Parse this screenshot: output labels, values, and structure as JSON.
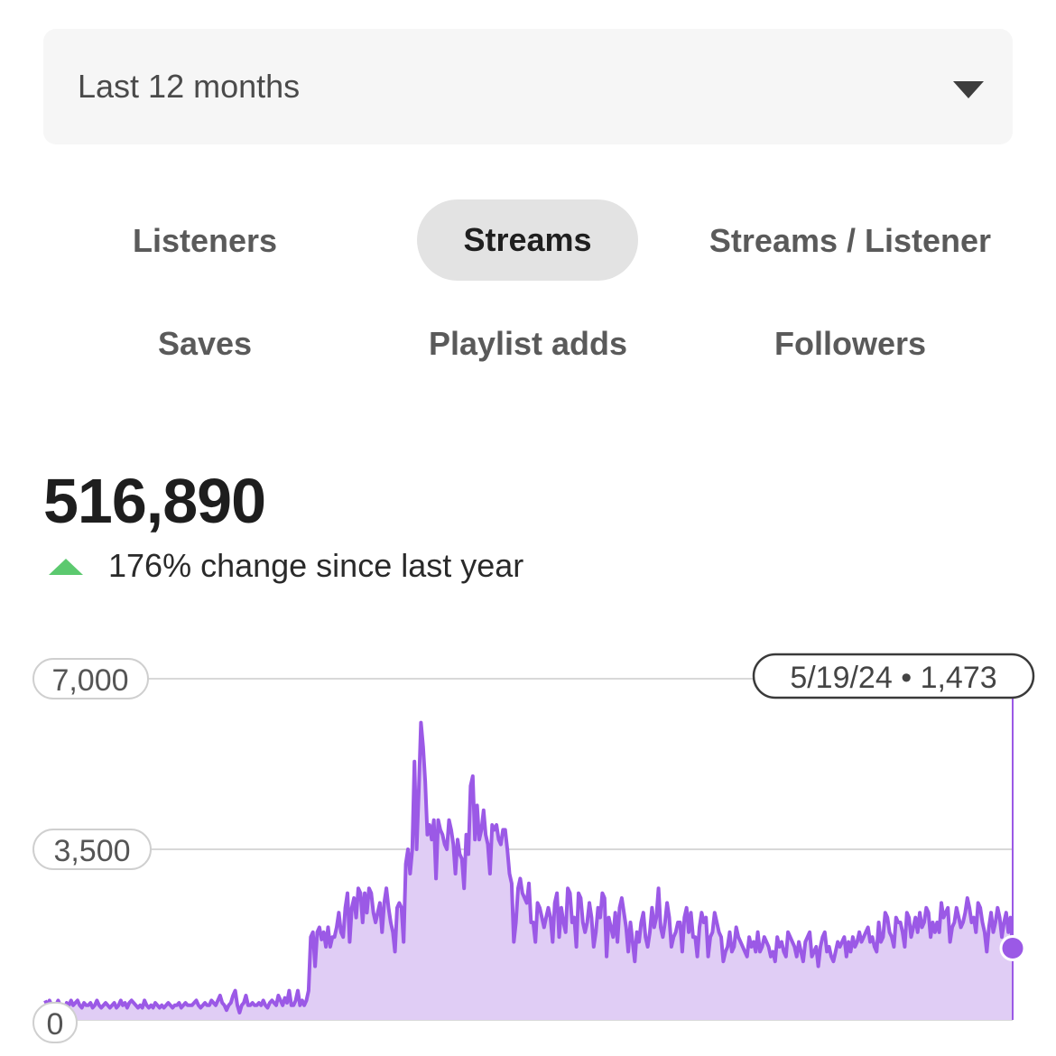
{
  "period_select": {
    "value": "Last 12 months",
    "caret_icon": "caret-down-icon"
  },
  "metric_tabs": [
    {
      "label": "Listeners",
      "active": false
    },
    {
      "label": "Streams",
      "active": true
    },
    {
      "label": "Streams / Listener",
      "active": false
    },
    {
      "label": "Saves",
      "active": false
    },
    {
      "label": "Playlist adds",
      "active": false
    },
    {
      "label": "Followers",
      "active": false
    }
  ],
  "summary": {
    "total": "516,890",
    "change_text": "176% change since last year",
    "trend_icon": "up-triangle-icon",
    "trend_color": "#5cc96f"
  },
  "chart_data": {
    "type": "area",
    "y_ticks": [
      "7,000",
      "3,500",
      "0"
    ],
    "ylim": [
      0,
      7000
    ],
    "grid": true,
    "line_color": "#9b59e6",
    "fill_color": "#e0cdf5",
    "tooltip": {
      "date": "5/19/24",
      "separator": "•",
      "value": "1,473"
    },
    "series": [
      {
        "values": [
          400,
          300,
          400,
          300,
          200,
          300,
          400,
          300,
          250,
          200,
          350,
          300,
          400,
          300,
          350,
          400,
          300,
          250,
          350,
          300,
          300,
          350,
          250,
          300,
          400,
          300,
          250,
          300,
          350,
          300,
          250,
          300,
          350,
          250,
          300,
          400,
          300,
          350,
          250,
          350,
          400,
          350,
          300,
          250,
          300,
          250,
          400,
          300,
          250,
          300,
          250,
          350,
          300,
          250,
          300,
          250,
          300,
          350,
          300,
          250,
          300,
          300,
          350,
          250,
          300,
          350,
          300,
          300,
          300,
          350,
          400,
          300,
          250,
          300,
          350,
          300,
          300,
          400,
          350,
          300,
          400,
          500,
          350,
          300,
          200,
          300,
          350,
          500,
          600,
          300,
          150,
          300,
          350,
          500,
          300,
          300,
          350,
          300,
          300,
          350,
          300,
          400,
          300,
          250,
          350,
          400,
          350,
          300,
          500,
          400,
          300,
          450,
          350,
          600,
          300,
          300,
          400,
          600,
          300,
          400,
          300,
          400,
          600,
          1700,
          1800,
          1100,
          1800,
          1900,
          1650,
          1800,
          1500,
          1900,
          1500,
          1700,
          1700,
          1900,
          2200,
          1800,
          1700,
          2300,
          2600,
          1600,
          2300,
          2500,
          2100,
          2700,
          2600,
          2000,
          2600,
          2200,
          2700,
          2600,
          2200,
          2000,
          2200,
          2400,
          1800,
          2400,
          2700,
          2300,
          2000,
          1800,
          1400,
          2300,
          2400,
          2300,
          1600,
          3200,
          3500,
          3000,
          3500,
          5300,
          3500,
          4700,
          6100,
          5600,
          4900,
          3800,
          4000,
          3700,
          4100,
          2900,
          4100,
          3900,
          3800,
          3600,
          3500,
          4100,
          3900,
          3600,
          3000,
          3700,
          3400,
          3300,
          2700,
          3800,
          3400,
          4800,
          5000,
          3700,
          4400,
          3700,
          3900,
          4300,
          3800,
          3600,
          3000,
          4000,
          3900,
          4000,
          3700,
          3600,
          3900,
          3900,
          3500,
          3000,
          2800,
          1600,
          2000,
          2700,
          2900,
          2600,
          2500,
          2400,
          2800,
          2000,
          2000,
          1600,
          2400,
          2300,
          2100,
          1900,
          2100,
          2300,
          2100,
          1600,
          2400,
          2600,
          1700,
          2300,
          2000,
          1800,
          2700,
          2600,
          2000,
          2100,
          1500,
          2600,
          2500,
          2000,
          1800,
          2000,
          2400,
          2100,
          1500,
          1800,
          2300,
          2100,
          2600,
          2500,
          1300,
          2100,
          1900,
          1700,
          2200,
          1600,
          2300,
          2500,
          2200,
          1900,
          1400,
          2000,
          1600,
          1200,
          1800,
          1600,
          2000,
          2200,
          1700,
          1500,
          1800,
          2300,
          1900,
          2100,
          2700,
          1900,
          1700,
          2000,
          2400,
          2100,
          1500,
          1700,
          1800,
          2000,
          2000,
          1400,
          2100,
          2300,
          1800,
          2200,
          1700,
          1700,
          1300,
          1900,
          2200,
          2000,
          2100,
          1300,
          1700,
          1800,
          2200,
          2000,
          1800,
          1700,
          1200,
          1400,
          1500,
          1800,
          1400,
          1500,
          1900,
          1700,
          1600,
          1500,
          1400,
          1300,
          1700,
          1500,
          1600,
          1400,
          1800,
          1400,
          1500,
          1700,
          1600,
          1500,
          1300,
          1400,
          1200,
          1700,
          1500,
          1600,
          1400,
          1300,
          1800,
          1700,
          1600,
          1500,
          1300,
          1600,
          1400,
          1200,
          1600,
          1700,
          1800,
          1300,
          1400,
          1500,
          1100,
          1500,
          1700,
          1800,
          1400,
          1500,
          1300,
          1200,
          1400,
          1600,
          1500,
          1600,
          1700,
          1300,
          1600,
          1400,
          1700,
          1500,
          1600,
          1800,
          1600,
          1700,
          1800,
          1900,
          1600,
          1700,
          1500,
          1400,
          2000,
          1600,
          1700,
          2200,
          2100,
          1800,
          1700,
          1500,
          2100,
          2000,
          2000,
          1800,
          1500,
          2200,
          2100,
          1700,
          1900,
          2100,
          1800,
          2200,
          1900,
          2000,
          2300,
          2200,
          1700,
          2000,
          1800,
          2000,
          1800,
          2400,
          2100,
          2200,
          2300,
          1600,
          1900,
          2000,
          2300,
          2100,
          1900,
          2000,
          2200,
          2500,
          2300,
          2000,
          2100,
          1800,
          2400,
          2300,
          2000,
          1800,
          1400,
          1900,
          2200,
          1800,
          2000,
          2300,
          2100,
          1700,
          2000,
          2200,
          1800,
          2100,
          1473
        ]
      }
    ]
  }
}
